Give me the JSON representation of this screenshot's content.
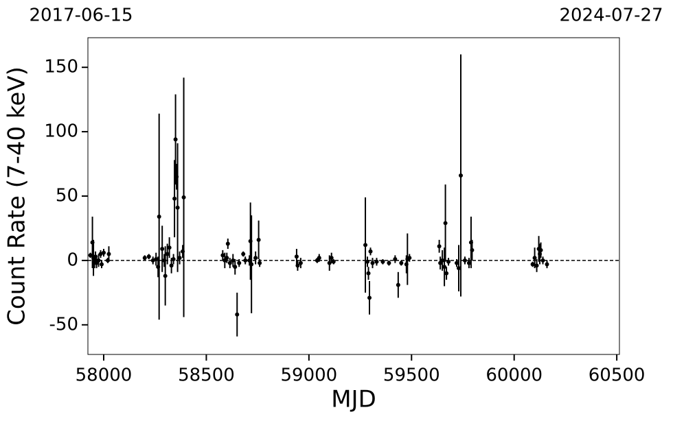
{
  "chart_data": {
    "type": "errorbar",
    "top_left_label": "2017-06-15",
    "top_right_label": "2024-07-27",
    "xlabel": "MJD",
    "ylabel": "Count Rate (7-40 keV)",
    "color": "#000000",
    "reference_line": 0,
    "xlim": [
      57923,
      60513
    ],
    "ylim": [
      -73,
      173
    ],
    "xticks": [
      58000,
      58500,
      59000,
      59500,
      60000,
      60500
    ],
    "yticks": [
      -50,
      0,
      50,
      100,
      150
    ],
    "x": [
      57935,
      57945,
      57950,
      57955,
      57960,
      57965,
      57975,
      57985,
      57990,
      58000,
      58020,
      58025,
      58200,
      58220,
      58240,
      58255,
      58265,
      58270,
      58285,
      58295,
      58300,
      58310,
      58320,
      58330,
      58340,
      58345,
      58350,
      58355,
      58360,
      58370,
      58385,
      58390,
      58580,
      58590,
      58600,
      58605,
      58615,
      58630,
      58640,
      58650,
      58660,
      58680,
      58690,
      58710,
      58715,
      58720,
      58740,
      58755,
      58760,
      58940,
      58945,
      58960,
      59040,
      59050,
      59100,
      59110,
      59120,
      59275,
      59285,
      59290,
      59295,
      59300,
      59310,
      59330,
      59360,
      59390,
      59420,
      59435,
      59450,
      59475,
      59480,
      59490,
      59635,
      59640,
      59650,
      59660,
      59665,
      59670,
      59680,
      59720,
      59730,
      59740,
      59760,
      59780,
      59790,
      59795,
      60090,
      60100,
      60110,
      60120,
      60125,
      60130,
      60140,
      60160
    ],
    "values": [
      4,
      14,
      2,
      -1,
      3,
      -2,
      0,
      5,
      -3,
      6,
      0,
      5,
      2,
      3,
      0,
      1,
      -5,
      34,
      9,
      0,
      -12,
      5,
      10,
      -4,
      1,
      48,
      94,
      65,
      41,
      2,
      7,
      49,
      4,
      0,
      2,
      13,
      -2,
      0,
      -5,
      -42,
      -2,
      5,
      0,
      0,
      15,
      -3,
      2,
      16,
      -2,
      3,
      -4,
      -2,
      0,
      2,
      -2,
      2,
      -1,
      12,
      -1,
      -10,
      -29,
      7,
      -2,
      -1,
      -1,
      -2,
      1,
      -19,
      -2,
      -3,
      1,
      2,
      11,
      -2,
      0,
      -5,
      29,
      -10,
      -1,
      -2,
      -6,
      66,
      0,
      -2,
      14,
      8,
      -3,
      2,
      -4,
      9,
      5,
      8,
      0,
      -3
    ],
    "errors": [
      2,
      20,
      14,
      5,
      4,
      4,
      5,
      3,
      3,
      3,
      2,
      6,
      2,
      2,
      3,
      5,
      8,
      80,
      18,
      5,
      23,
      8,
      8,
      6,
      4,
      30,
      35,
      10,
      50,
      5,
      5,
      93,
      4,
      6,
      4,
      4,
      4,
      5,
      6,
      17,
      3,
      2,
      3,
      4,
      30,
      38,
      5,
      15,
      3,
      6,
      4,
      4,
      2,
      3,
      6,
      4,
      2,
      37,
      4,
      5,
      13,
      3,
      4,
      3,
      2,
      2,
      3,
      10,
      2,
      7,
      20,
      3,
      5,
      5,
      8,
      15,
      30,
      5,
      3,
      3,
      18,
      94,
      3,
      4,
      20,
      8,
      2,
      8,
      5,
      10,
      8,
      6,
      3,
      3
    ]
  }
}
